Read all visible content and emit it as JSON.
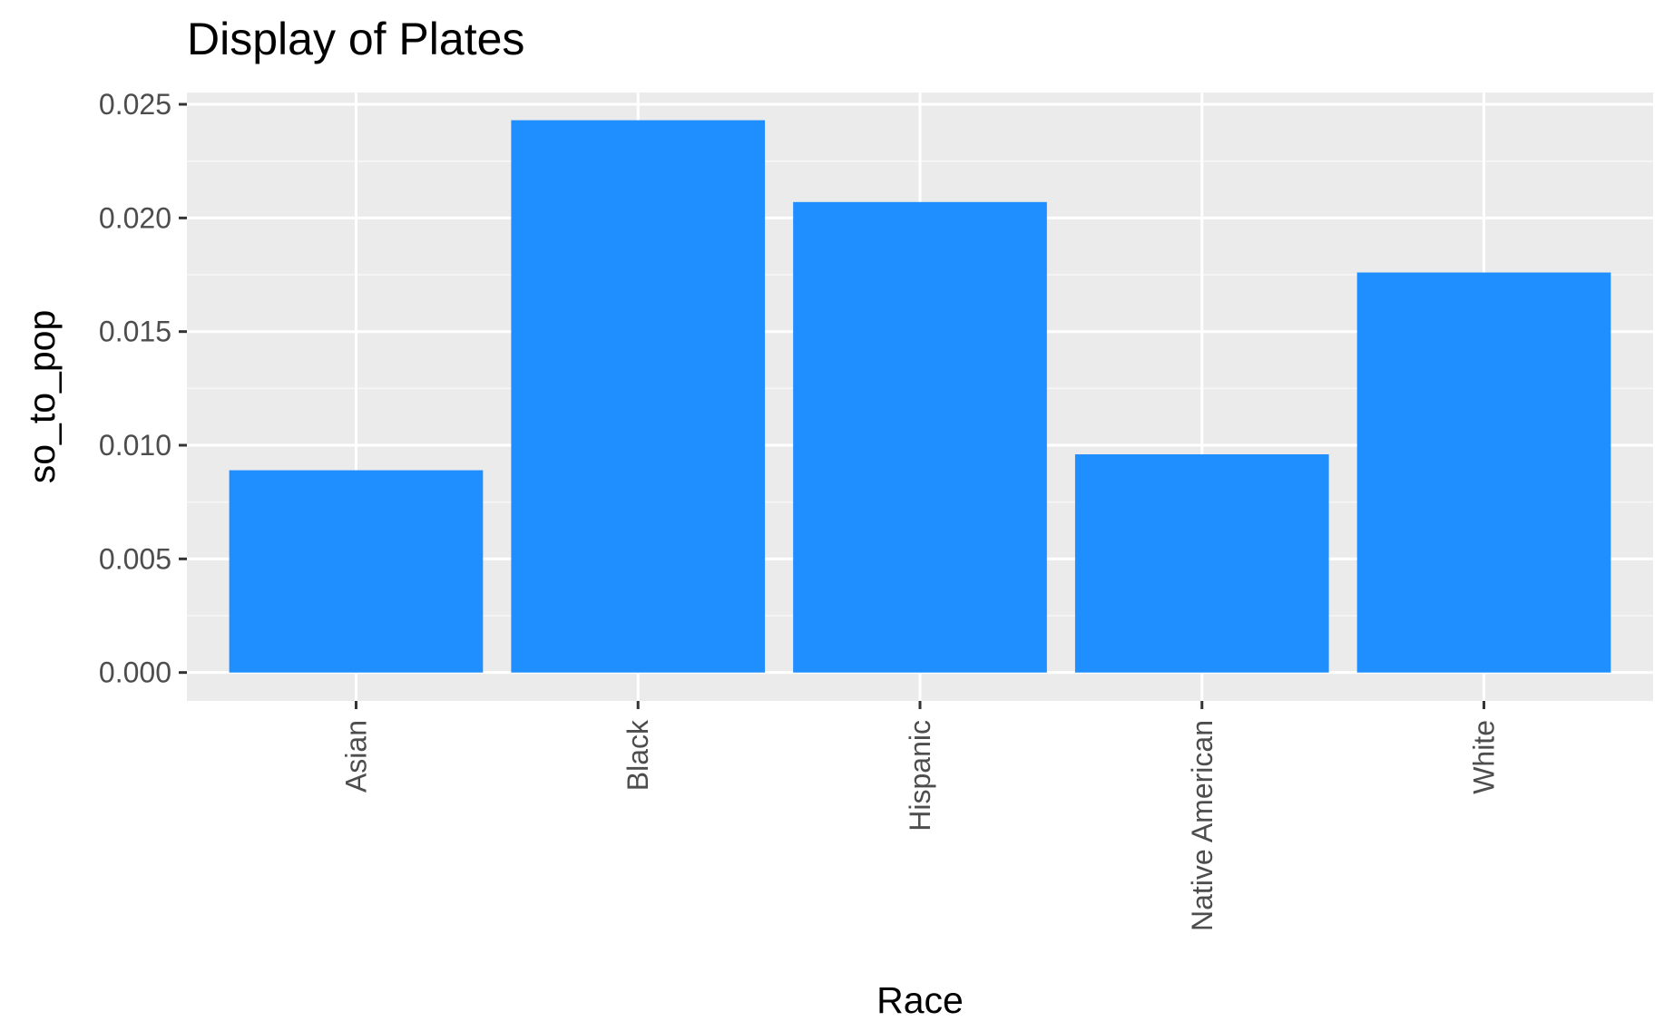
{
  "chart_data": {
    "type": "bar",
    "title": "Display of Plates",
    "xlabel": "Race",
    "ylabel": "so_to_pop",
    "categories": [
      "Asian",
      "Black",
      "Hispanic",
      "Native American",
      "White"
    ],
    "values": [
      0.0089,
      0.0243,
      0.0207,
      0.0096,
      0.0176
    ],
    "ylim": [
      -0.00125,
      0.02552
    ],
    "yticks": [
      "0.000",
      "0.005",
      "0.010",
      "0.015",
      "0.020",
      "0.025"
    ],
    "ytick_values": [
      0,
      0.005,
      0.01,
      0.015,
      0.02,
      0.025
    ],
    "x_tick_label_rotation": "vertical",
    "grid": true,
    "legend": "none",
    "colors": {
      "bar": "#1f8fff",
      "panel_background": "#ebebeb",
      "grid_major": "#ffffff",
      "grid_minor": "#f7f7f7",
      "tick_mark": "#333333"
    }
  }
}
